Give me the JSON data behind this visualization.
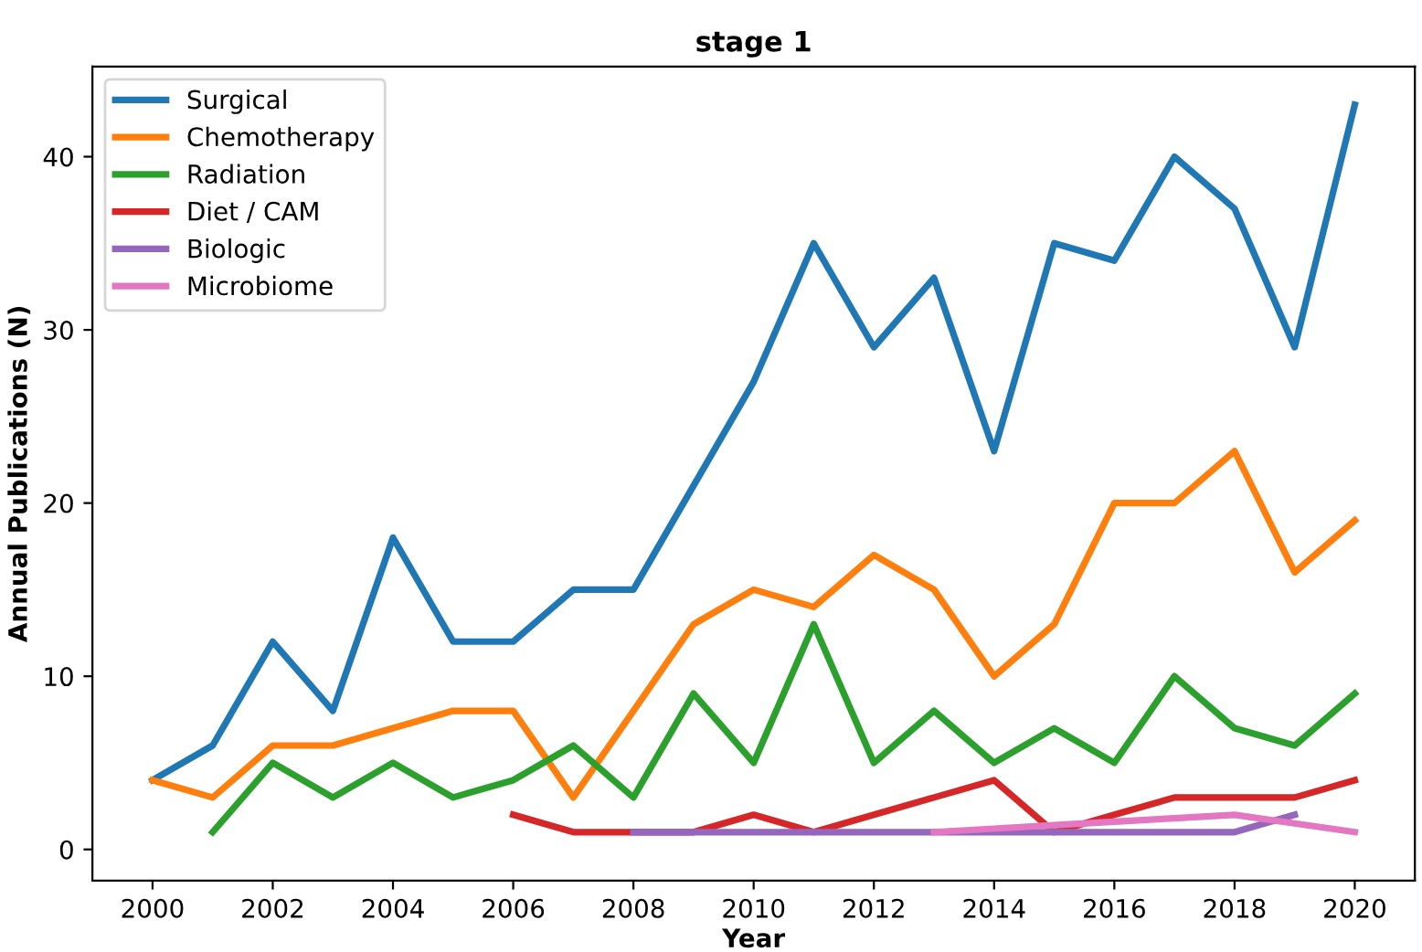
{
  "chart_data": {
    "type": "line",
    "title": "stage 1",
    "xlabel": "Year",
    "ylabel": "Annual Publications (N)",
    "x": [
      2000,
      2001,
      2002,
      2003,
      2004,
      2005,
      2006,
      2007,
      2008,
      2009,
      2010,
      2011,
      2012,
      2013,
      2014,
      2015,
      2016,
      2017,
      2018,
      2019,
      2020
    ],
    "series": [
      {
        "name": "Surgical",
        "color": "#1f77b4",
        "values": [
          4,
          6,
          12,
          8,
          18,
          12,
          12,
          15,
          15,
          21,
          27,
          35,
          29,
          33,
          23,
          35,
          34,
          40,
          37,
          29,
          43
        ]
      },
      {
        "name": "Chemotherapy",
        "color": "#ff7f0e",
        "values": [
          4,
          3,
          6,
          6,
          7,
          8,
          8,
          3,
          8,
          13,
          15,
          14,
          17,
          15,
          10,
          13,
          20,
          20,
          23,
          16,
          19
        ]
      },
      {
        "name": "Radiation",
        "color": "#2ca02c",
        "values": [
          null,
          1,
          5,
          3,
          5,
          3,
          4,
          6,
          3,
          9,
          5,
          13,
          5,
          8,
          5,
          7,
          5,
          10,
          7,
          6,
          9
        ]
      },
      {
        "name": "Diet / CAM",
        "color": "#d62728",
        "values": [
          null,
          null,
          null,
          null,
          null,
          null,
          2,
          1,
          1,
          1,
          2,
          1,
          2,
          3,
          4,
          1,
          2,
          3,
          3,
          3,
          4
        ]
      },
      {
        "name": "Biologic",
        "color": "#9467bd",
        "values": [
          null,
          null,
          null,
          null,
          null,
          null,
          null,
          null,
          1,
          1,
          1,
          1,
          1,
          1,
          1,
          1,
          1,
          1,
          1,
          2,
          null
        ]
      },
      {
        "name": "Microbiome",
        "color": "#e377c2",
        "values": [
          null,
          null,
          null,
          null,
          null,
          null,
          null,
          null,
          null,
          null,
          null,
          null,
          null,
          1,
          1.2,
          1.4,
          1.6,
          1.8,
          2,
          1.5,
          1
        ]
      }
    ],
    "xlim": [
      1999,
      2021
    ],
    "xticks": [
      2000,
      2002,
      2004,
      2006,
      2008,
      2010,
      2012,
      2014,
      2016,
      2018,
      2020
    ],
    "ylim": [
      -1.8,
      45.2
    ],
    "yticks": [
      0,
      10,
      20,
      30,
      40
    ],
    "grid": false,
    "legend": "top left",
    "marker": "none",
    "line_style": "solid"
  }
}
